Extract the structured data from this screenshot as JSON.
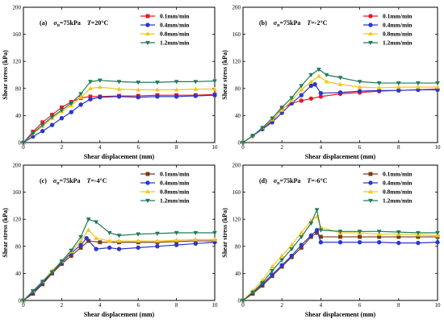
{
  "figure": {
    "series_names": [
      "0.1mm/min",
      "0.4mm/min",
      "0.8mm/min",
      "1.2mm/min"
    ]
  },
  "chart_data": [
    {
      "type": "line",
      "panel_label": "(a)",
      "sigma_symbol": "σ",
      "sigma_sub": "n",
      "sigma_value": "=75kPa",
      "temp_symbol": "T",
      "temp_value": "=20°C",
      "xlabel": "Shear displacement (mm)",
      "ylabel": "Shear stress (kPa)",
      "xlim": [
        0,
        10
      ],
      "ylim": [
        0,
        200
      ],
      "xticks": [
        "0",
        "2",
        "4",
        "6",
        "8",
        "10"
      ],
      "yticks": [
        "0",
        "40",
        "80",
        "120",
        "160",
        "200"
      ],
      "legend_position": "top-right",
      "grid": false,
      "series": [
        {
          "name": "0.1mm/min",
          "color": "#e8182a",
          "marker": "square",
          "x": [
            0,
            0.5,
            1,
            1.5,
            2,
            2.5,
            3,
            3.5,
            4,
            5,
            6,
            7,
            8,
            9,
            10
          ],
          "y": [
            0,
            16,
            30,
            41,
            52,
            60,
            66,
            68,
            68,
            69,
            69,
            70,
            70,
            70,
            71
          ]
        },
        {
          "name": "0.4mm/min",
          "color": "#2a38c8",
          "marker": "circle",
          "x": [
            0,
            0.5,
            1,
            1.5,
            2,
            2.5,
            3,
            3.5,
            4,
            5,
            6,
            7,
            8,
            9,
            10
          ],
          "y": [
            0,
            9,
            17,
            26,
            36,
            45,
            56,
            64,
            67,
            68,
            67,
            68,
            68,
            69,
            70
          ]
        },
        {
          "name": "0.8mm/min",
          "color": "#f2c818",
          "marker": "triangle-up",
          "x": [
            0,
            0.5,
            1,
            1.5,
            2,
            2.5,
            3,
            3.5,
            4,
            5,
            6,
            7,
            8,
            9,
            10
          ],
          "y": [
            0,
            13,
            24,
            36,
            46,
            55,
            67,
            80,
            82,
            79,
            78,
            78,
            78,
            79,
            79
          ]
        },
        {
          "name": "1.2mm/min",
          "color": "#1f7a5a",
          "marker": "triangle-down",
          "x": [
            0,
            0.5,
            1,
            1.5,
            2,
            2.5,
            3,
            3.5,
            4,
            5,
            6,
            7,
            8,
            9,
            10
          ],
          "y": [
            0,
            14,
            26,
            38,
            48,
            58,
            72,
            90,
            92,
            90,
            89,
            89,
            90,
            90,
            91
          ]
        }
      ]
    },
    {
      "type": "line",
      "panel_label": "(b)",
      "sigma_symbol": "σ",
      "sigma_sub": "n",
      "sigma_value": "=75kPa",
      "temp_symbol": "T",
      "temp_value": "=-2°C",
      "xlabel": "Shear displacement (mm)",
      "ylabel": "Shear stress (kPa)",
      "xlim": [
        0,
        10
      ],
      "ylim": [
        0,
        200
      ],
      "xticks": [
        "0",
        "2",
        "4",
        "6",
        "8",
        "10"
      ],
      "yticks": [
        "0",
        "40",
        "80",
        "120",
        "160",
        "200"
      ],
      "legend_position": "top-right",
      "grid": false,
      "series": [
        {
          "name": "0.1mm/min",
          "color": "#e8182a",
          "marker": "circle",
          "x": [
            0,
            0.5,
            1,
            1.5,
            2,
            2.5,
            3,
            3.5,
            4,
            5,
            6,
            7,
            8,
            9,
            10
          ],
          "y": [
            0,
            10,
            20,
            32,
            50,
            58,
            62,
            65,
            68,
            72,
            74,
            76,
            77,
            78,
            79
          ]
        },
        {
          "name": "0.4mm/min",
          "color": "#2a38c8",
          "marker": "circle",
          "x": [
            0,
            0.5,
            1,
            1.5,
            2,
            2.5,
            3,
            3.5,
            3.7,
            4,
            5,
            6,
            7,
            8,
            9,
            10
          ],
          "y": [
            0,
            10,
            20,
            30,
            44,
            58,
            70,
            84,
            86,
            73,
            74,
            76,
            77,
            77,
            78,
            78
          ]
        },
        {
          "name": "0.8mm/min",
          "color": "#f2c818",
          "marker": "triangle-up",
          "x": [
            0,
            0.5,
            1,
            1.5,
            2,
            2.5,
            3,
            3.5,
            3.9,
            4.3,
            5,
            6,
            7,
            8,
            9,
            10
          ],
          "y": [
            0,
            10,
            22,
            34,
            48,
            62,
            78,
            90,
            98,
            90,
            86,
            82,
            81,
            82,
            82,
            82
          ]
        },
        {
          "name": "1.2mm/min",
          "color": "#1f7a5a",
          "marker": "triangle-down",
          "x": [
            0,
            0.5,
            1,
            1.5,
            2,
            2.5,
            3,
            3.5,
            3.9,
            4.3,
            5,
            6,
            7,
            8,
            9,
            10
          ],
          "y": [
            0,
            10,
            22,
            36,
            52,
            66,
            84,
            100,
            108,
            100,
            96,
            90,
            88,
            88,
            88,
            88
          ]
        }
      ]
    },
    {
      "type": "line",
      "panel_label": "(c)",
      "sigma_symbol": "σ",
      "sigma_sub": "n",
      "sigma_value": "=75kPa",
      "temp_symbol": "T",
      "temp_value": "=-4°C",
      "xlabel": "Shear displacement (mm)",
      "ylabel": "Shear stress (kPa)",
      "xlim": [
        0,
        10
      ],
      "ylim": [
        0,
        200
      ],
      "xticks": [
        "0",
        "2",
        "4",
        "6",
        "8",
        "10"
      ],
      "yticks": [
        "0",
        "40",
        "80",
        "120",
        "160",
        "200"
      ],
      "legend_position": "top-right",
      "grid": false,
      "series": [
        {
          "name": "0.1mm/min",
          "color": "#7a3a14",
          "marker": "square",
          "x": [
            0,
            0.5,
            1,
            1.5,
            2,
            2.5,
            3,
            3.4,
            4,
            5,
            6,
            7,
            8,
            9,
            10
          ],
          "y": [
            0,
            10,
            24,
            40,
            54,
            66,
            78,
            88,
            86,
            86,
            86,
            86,
            87,
            88,
            88
          ]
        },
        {
          "name": "0.4mm/min",
          "color": "#2a38c8",
          "marker": "circle",
          "x": [
            0,
            0.5,
            1,
            1.5,
            2,
            2.5,
            3,
            3.3,
            3.8,
            4.5,
            5,
            6,
            7,
            8,
            9,
            10
          ],
          "y": [
            0,
            12,
            26,
            42,
            56,
            70,
            82,
            92,
            76,
            78,
            76,
            78,
            80,
            82,
            84,
            86
          ]
        },
        {
          "name": "0.8mm/min",
          "color": "#f2c818",
          "marker": "triangle-up",
          "x": [
            0,
            0.5,
            1,
            1.5,
            2,
            2.5,
            3,
            3.4,
            3.8,
            4.5,
            5,
            6,
            7,
            8,
            9,
            10
          ],
          "y": [
            0,
            14,
            28,
            44,
            58,
            72,
            88,
            104,
            92,
            88,
            88,
            88,
            88,
            89,
            90,
            90
          ]
        },
        {
          "name": "1.2mm/min",
          "color": "#1f7a5a",
          "marker": "triangle-down",
          "x": [
            0,
            0.5,
            1,
            1.5,
            2,
            2.5,
            3,
            3.4,
            3.8,
            4.5,
            5,
            6,
            7,
            8,
            9,
            10
          ],
          "y": [
            0,
            14,
            28,
            42,
            58,
            74,
            94,
            120,
            116,
            100,
            96,
            98,
            99,
            100,
            100,
            100
          ]
        }
      ]
    },
    {
      "type": "line",
      "panel_label": "(d)",
      "sigma_symbol": "σ",
      "sigma_sub": "n",
      "sigma_value": "=75kPa",
      "temp_symbol": "T",
      "temp_value": "=-6°C",
      "xlabel": "Shear displacement (mm)",
      "ylabel": "Shear stress (kPa)",
      "xlim": [
        0,
        10
      ],
      "ylim": [
        0,
        200
      ],
      "xticks": [
        "0",
        "2",
        "4",
        "6",
        "8",
        "10"
      ],
      "yticks": [
        "0",
        "40",
        "80",
        "120",
        "160",
        "200"
      ],
      "legend_position": "top-right",
      "grid": false,
      "series": [
        {
          "name": "0.1mm/min",
          "color": "#7a3a14",
          "marker": "square",
          "x": [
            0,
            0.5,
            1,
            1.5,
            2,
            2.5,
            3,
            3.5,
            3.8,
            4,
            5,
            6,
            7,
            8,
            9,
            10
          ],
          "y": [
            0,
            10,
            22,
            36,
            50,
            64,
            78,
            94,
            100,
            94,
            94,
            94,
            94,
            94,
            94,
            94
          ]
        },
        {
          "name": "0.4mm/min",
          "color": "#2a38c8",
          "marker": "circle",
          "x": [
            0,
            0.5,
            1,
            1.5,
            2,
            2.5,
            3,
            3.5,
            3.8,
            4,
            5,
            6,
            7,
            8,
            9,
            10
          ],
          "y": [
            0,
            12,
            24,
            38,
            52,
            66,
            82,
            96,
            104,
            86,
            86,
            86,
            86,
            85,
            85,
            86
          ]
        },
        {
          "name": "0.8mm/min",
          "color": "#f2c818",
          "marker": "triangle-up",
          "x": [
            0,
            0.5,
            1,
            1.5,
            2,
            2.5,
            3,
            3.5,
            3.8,
            4,
            5,
            6,
            7,
            8,
            9,
            10
          ],
          "y": [
            0,
            14,
            30,
            50,
            66,
            82,
            100,
            118,
            124,
            108,
            100,
            100,
            98,
            98,
            97,
            96
          ]
        },
        {
          "name": "1.2mm/min",
          "color": "#1f7a5a",
          "marker": "triangle-down",
          "x": [
            0,
            0.5,
            1,
            1.5,
            2,
            2.5,
            3,
            3.5,
            3.8,
            4,
            5,
            6,
            7,
            8,
            9,
            10
          ],
          "y": [
            0,
            12,
            26,
            44,
            60,
            76,
            94,
            114,
            134,
            104,
            102,
            102,
            102,
            101,
            100,
            100
          ]
        }
      ]
    }
  ]
}
